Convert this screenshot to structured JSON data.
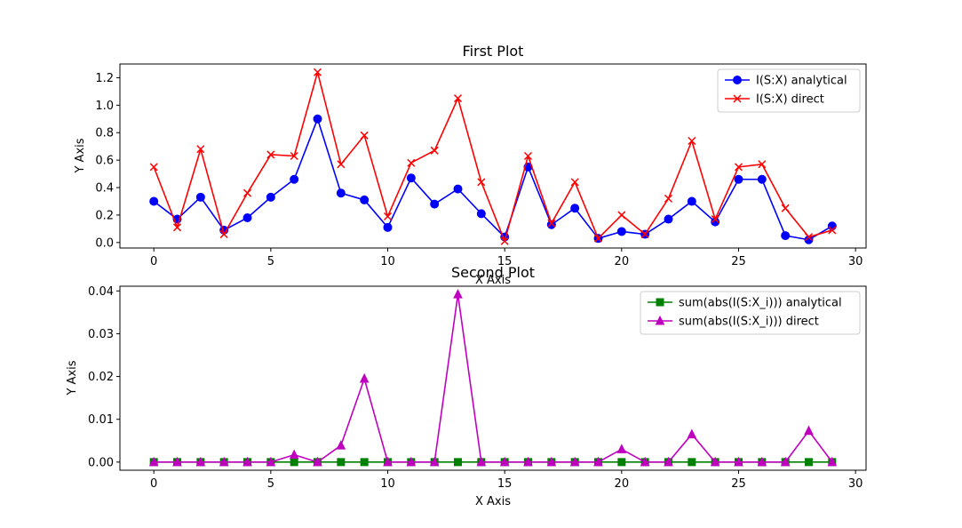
{
  "chart_data": [
    {
      "type": "line",
      "title": "First Plot",
      "xlabel": "X Axis",
      "ylabel": "Y Axis",
      "xlim": [
        -1.45,
        30.45
      ],
      "ylim": [
        -0.04,
        1.3
      ],
      "xticks": [
        0,
        5,
        10,
        15,
        20,
        25,
        30
      ],
      "yticks": [
        0.0,
        0.2,
        0.4,
        0.6,
        0.8,
        1.0,
        1.2
      ],
      "ytick_format": 1,
      "legend": "top-right",
      "x": [
        0,
        1,
        2,
        3,
        4,
        5,
        6,
        7,
        8,
        9,
        10,
        11,
        12,
        13,
        14,
        15,
        16,
        17,
        18,
        19,
        20,
        21,
        22,
        23,
        24,
        25,
        26,
        27,
        28,
        29
      ],
      "series": [
        {
          "name": "I(S:X) analytical",
          "color": "#0000ff",
          "marker": "circle",
          "values": [
            0.3,
            0.17,
            0.33,
            0.09,
            0.18,
            0.33,
            0.46,
            0.9,
            0.36,
            0.31,
            0.11,
            0.47,
            0.28,
            0.39,
            0.21,
            0.04,
            0.55,
            0.13,
            0.25,
            0.03,
            0.08,
            0.06,
            0.17,
            0.3,
            0.15,
            0.46,
            0.46,
            0.05,
            0.02,
            0.12
          ]
        },
        {
          "name": "I(S:X) direct",
          "color": "#ff0000",
          "marker": "x",
          "values": [
            0.55,
            0.11,
            0.68,
            0.06,
            0.36,
            0.64,
            0.63,
            1.24,
            0.57,
            0.78,
            0.19,
            0.58,
            0.67,
            1.05,
            0.44,
            0.01,
            0.63,
            0.14,
            0.44,
            0.03,
            0.2,
            0.06,
            0.32,
            0.74,
            0.17,
            0.55,
            0.57,
            0.25,
            0.04,
            0.09
          ]
        }
      ]
    },
    {
      "type": "line",
      "title": "Second Plot",
      "xlabel": "X Axis",
      "ylabel": "Y Axis",
      "xlim": [
        -1.45,
        30.45
      ],
      "ylim": [
        -0.0019,
        0.0411
      ],
      "xticks": [
        0,
        5,
        10,
        15,
        20,
        25,
        30
      ],
      "yticks": [
        0.0,
        0.01,
        0.02,
        0.03,
        0.04
      ],
      "ytick_format": 2,
      "legend": "top-right",
      "x": [
        0,
        1,
        2,
        3,
        4,
        5,
        6,
        7,
        8,
        9,
        10,
        11,
        12,
        13,
        14,
        15,
        16,
        17,
        18,
        19,
        20,
        21,
        22,
        23,
        24,
        25,
        26,
        27,
        28,
        29
      ],
      "series": [
        {
          "name": "sum(abs(I(S:X_i))) analytical",
          "color": "#008000",
          "marker": "square",
          "values": [
            0,
            0,
            0,
            0,
            0,
            0,
            0,
            0,
            0,
            0,
            0,
            0,
            0,
            0,
            0,
            0,
            0,
            0,
            0,
            0,
            0,
            0,
            0,
            0,
            0,
            0,
            0,
            0,
            0,
            0
          ]
        },
        {
          "name": "sum(abs(I(S:X_i))) direct",
          "color": "#bf00bf",
          "marker": "triangle",
          "values": [
            0,
            0,
            0,
            0,
            0,
            0,
            0.0017,
            0,
            0.0039,
            0.0195,
            0,
            0,
            0,
            0.0392,
            0,
            0,
            0,
            0,
            0,
            0,
            0.003,
            0,
            0,
            0.0065,
            0,
            0,
            0,
            0,
            0.0073,
            0
          ]
        }
      ]
    }
  ]
}
